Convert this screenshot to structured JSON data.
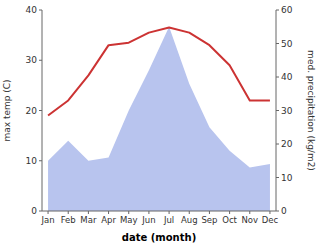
{
  "chart_data": {
    "type": "line",
    "categories": [
      "Jan",
      "Feb",
      "Mar",
      "Apr",
      "May",
      "Jun",
      "Jul",
      "Aug",
      "Sep",
      "Oct",
      "Nov",
      "Dec"
    ],
    "series": [
      {
        "type": "line",
        "color": "#cc3333",
        "values": [
          19,
          22,
          27,
          33,
          33.5,
          35.5,
          36.5,
          35.5,
          33,
          29,
          22,
          22
        ]
      },
      {
        "type": "area",
        "color": "#b8c4ee",
        "axis": "y2",
        "values": [
          15,
          21,
          15,
          16,
          30,
          42,
          55,
          38,
          25,
          18,
          13,
          14
        ]
      }
    ],
    "x_label": "date (month)",
    "y_label": "max temp (C)",
    "y2_label": "med. precipitation (kg/m2)",
    "ylim": [
      0,
      40
    ],
    "yticks": [
      0,
      10,
      20,
      30,
      40
    ],
    "y2lim": [
      0,
      60
    ],
    "y2ticks": [
      0,
      10,
      20,
      30,
      40,
      50,
      60
    ],
    "grid": false
  }
}
